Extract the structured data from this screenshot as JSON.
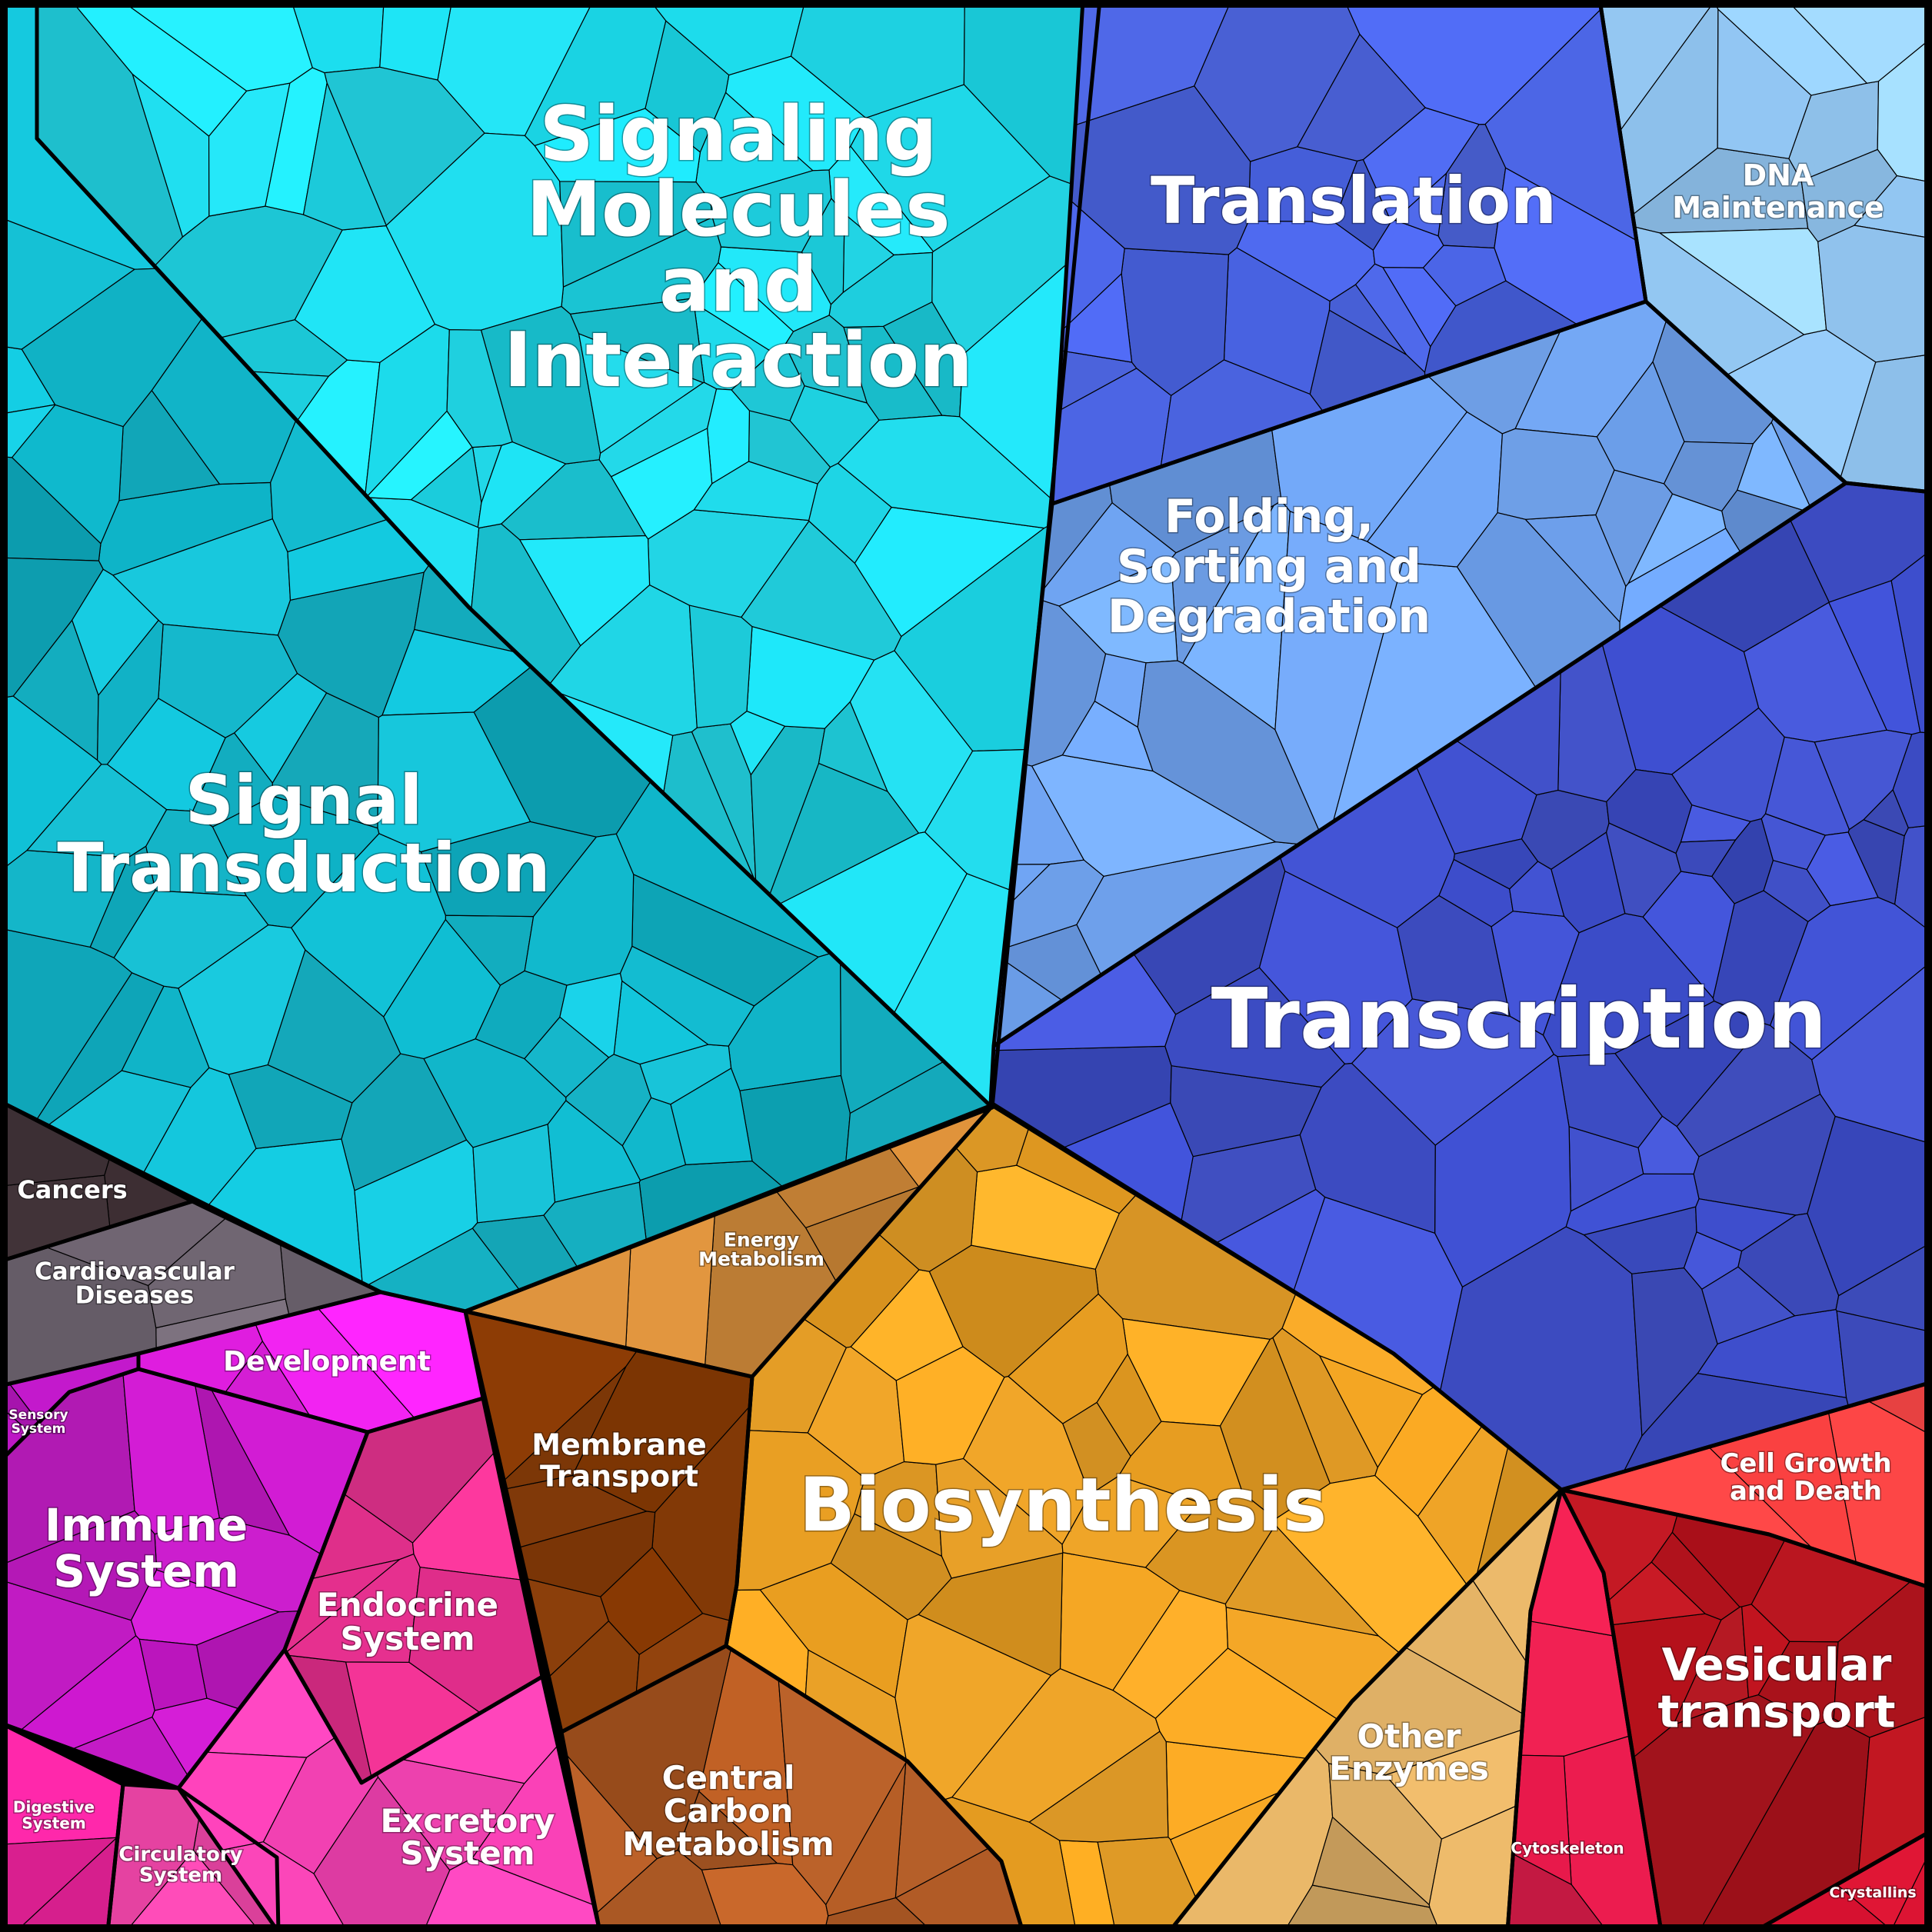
{
  "title": "",
  "regions": [
    {
      "id": "signaling",
      "label": "Signaling Molecules and Interaction",
      "lines": [
        "Signaling",
        "Molecules",
        "and",
        "Interaction"
      ],
      "color": "#1fd6e6"
    },
    {
      "id": "signal-transduction",
      "label": "Signal Transduction",
      "lines": [
        "Signal",
        "Transduction"
      ],
      "color": "#13b8cc"
    },
    {
      "id": "translation",
      "label": "Translation",
      "lines": [
        "Translation"
      ],
      "color": "#4a63e0"
    },
    {
      "id": "dna-maintenance",
      "label": "DNA Maintenance",
      "lines": [
        "DNA",
        "Maintenance"
      ],
      "color": "#94c8f4"
    },
    {
      "id": "folding",
      "label": "Folding, Sorting and Degradation",
      "lines": [
        "Folding,",
        "Sorting and",
        "Degradation"
      ],
      "color": "#6fa2ee"
    },
    {
      "id": "transcription",
      "label": "Transcription",
      "lines": [
        "Transcription"
      ],
      "color": "#3f4fc8"
    },
    {
      "id": "cancers",
      "label": "Cancers",
      "lines": [
        "Cancers"
      ],
      "color": "#3e3035"
    },
    {
      "id": "cardiovascular",
      "label": "Cardiovascular Diseases",
      "lines": [
        "Cardiovascular",
        "Diseases"
      ],
      "color": "#6e6470"
    },
    {
      "id": "development",
      "label": "Development",
      "lines": [
        "Development"
      ],
      "color": "#ee22ee"
    },
    {
      "id": "sensory",
      "label": "Sensory System",
      "lines": [
        "Sensory",
        "System"
      ],
      "color": "#c019c8"
    },
    {
      "id": "immune",
      "label": "Immune System",
      "lines": [
        "Immune",
        "System"
      ],
      "color": "#c21ac4"
    },
    {
      "id": "endocrine",
      "label": "Endocrine System",
      "lines": [
        "Endocrine",
        "System"
      ],
      "color": "#e6318f"
    },
    {
      "id": "digestive",
      "label": "Digestive System",
      "lines": [
        "Digestive",
        "System"
      ],
      "color": "#e8239a"
    },
    {
      "id": "circulatory",
      "label": "Circulatory System",
      "lines": [
        "Circulatory",
        "System"
      ],
      "color": "#ee44a8"
    },
    {
      "id": "excretory",
      "label": "Excretory System",
      "lines": [
        "Excretory",
        "System"
      ],
      "color": "#f040b0"
    },
    {
      "id": "energy",
      "label": "Energy Metabolism",
      "lines": [
        "Energy",
        "Metabolism"
      ],
      "color": "#d08a3a"
    },
    {
      "id": "membrane",
      "label": "Membrane Transport",
      "lines": [
        "Membrane",
        "Transport"
      ],
      "color": "#8c3e08"
    },
    {
      "id": "central-carbon",
      "label": "Central Carbon Metabolism",
      "lines": [
        "Central",
        "Carbon",
        "Metabolism"
      ],
      "color": "#b05a24"
    },
    {
      "id": "biosynthesis",
      "label": "Biosynthesis",
      "lines": [
        "Biosynthesis"
      ],
      "color": "#eaa024"
    },
    {
      "id": "other-enzymes",
      "label": "Other Enzymes",
      "lines": [
        "Other",
        "Enzymes"
      ],
      "color": "#d8aa62"
    },
    {
      "id": "cell-growth",
      "label": "Cell Growth and Death",
      "lines": [
        "Cell Growth",
        "and Death"
      ],
      "color": "#ea4040"
    },
    {
      "id": "vesicular",
      "label": "Vesicular transport",
      "lines": [
        "Vesicular",
        "transport"
      ],
      "color": "#b2141e"
    },
    {
      "id": "cytoskeleton",
      "label": "Cytoskeleton",
      "lines": [
        "Cytoskeleton"
      ],
      "color": "#d81a48"
    },
    {
      "id": "crystallins",
      "label": "Crystallins",
      "lines": [
        "Crystallins"
      ],
      "color": "#e01434"
    }
  ]
}
